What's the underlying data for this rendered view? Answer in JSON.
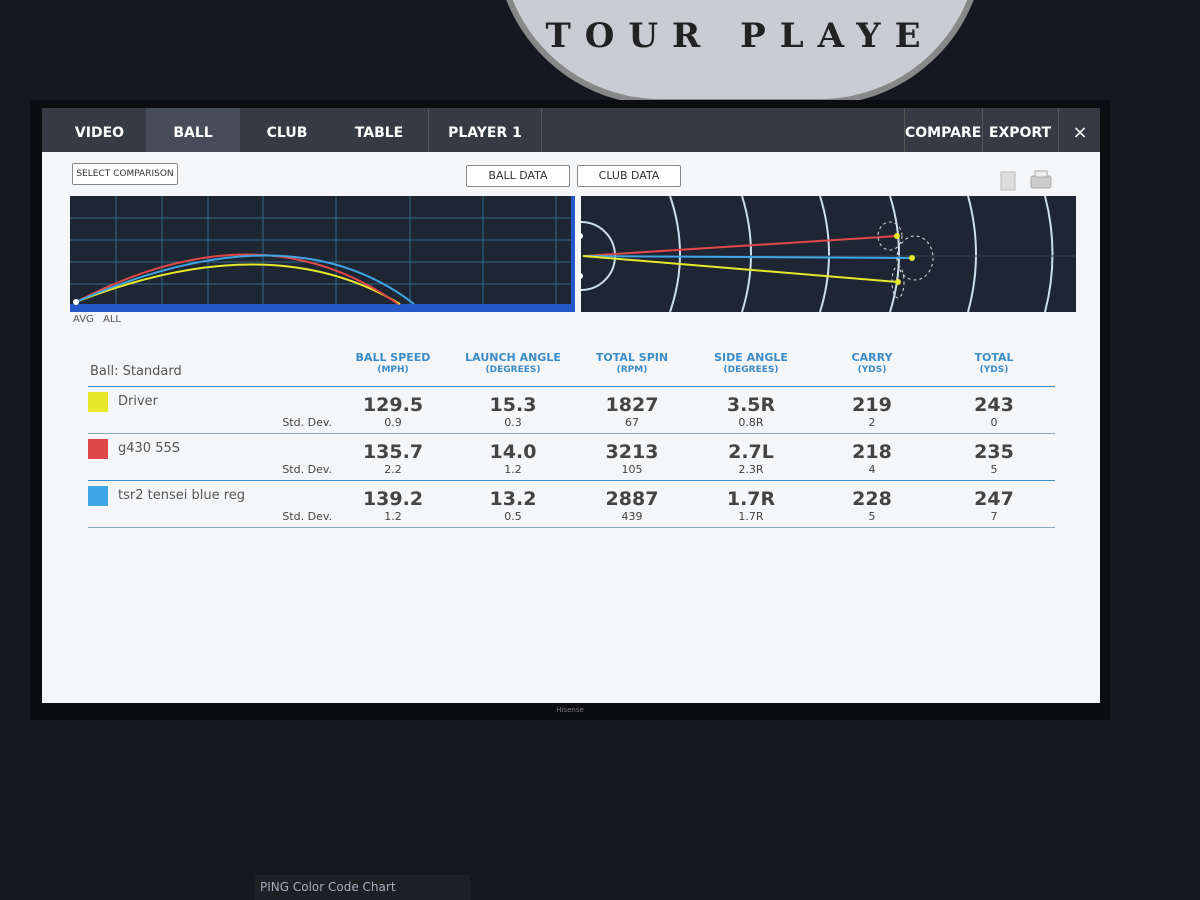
{
  "background": {
    "sign_text": "TOUR PLAYE",
    "monitor_brand": "Hisense",
    "poster_text": "PING Color Code Chart"
  },
  "nav": {
    "tabs": [
      "VIDEO",
      "BALL",
      "CLUB",
      "TABLE",
      "PLAYER 1"
    ],
    "actions": [
      "COMPARE",
      "EXPORT"
    ],
    "close": "×"
  },
  "toolbar": {
    "select_comparison": "SELECT COMPARISON",
    "ball_data": "BALL DATA",
    "club_data": "CLUB DATA"
  },
  "chart_footer": [
    "AVG",
    "ALL"
  ],
  "table": {
    "ball_label": "Ball: Standard",
    "columns": [
      {
        "title": "BALL SPEED",
        "unit": "(MPH)"
      },
      {
        "title": "LAUNCH ANGLE",
        "unit": "(DEGREES)"
      },
      {
        "title": "TOTAL SPIN",
        "unit": "(RPM)"
      },
      {
        "title": "SIDE ANGLE",
        "unit": "(DEGREES)"
      },
      {
        "title": "CARRY",
        "unit": "(YDS)"
      },
      {
        "title": "TOTAL",
        "unit": "(YDS)"
      }
    ],
    "rows": [
      {
        "name": "Driver",
        "color": "#e8e82a",
        "std_label": "Std. Dev.",
        "values": [
          "129.5",
          "15.3",
          "1827",
          "3.5R",
          "219",
          "243"
        ],
        "std_dev": [
          "0.9",
          "0.3",
          "67",
          "0.8R",
          "2",
          "0"
        ]
      },
      {
        "name": "g430 55S",
        "color": "#e04848",
        "std_label": "Std. Dev.",
        "values": [
          "135.7",
          "14.0",
          "3213",
          "2.7L",
          "218",
          "235"
        ],
        "std_dev": [
          "2.2",
          "1.2",
          "105",
          "2.3R",
          "4",
          "5"
        ]
      },
      {
        "name": "tsr2 tensei blue reg",
        "color": "#3ea6e4",
        "std_label": "Std. Dev.",
        "values": [
          "139.2",
          "13.2",
          "2887",
          "1.7R",
          "228",
          "247"
        ],
        "std_dev": [
          "1.2",
          "0.5",
          "439",
          "1.7R",
          "5",
          "7"
        ]
      }
    ]
  }
}
